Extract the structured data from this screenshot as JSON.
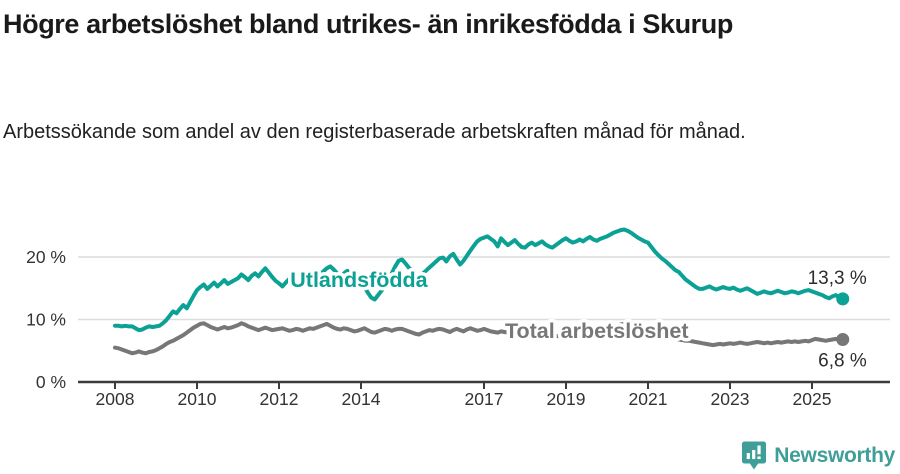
{
  "header": {
    "title": "Högre arbetslöshet bland utrikes- än inrikesfödda i Skurup",
    "subtitle": "Arbetssökande som andel av den registerbaserade arbetskraften månad för månad."
  },
  "chart_data": {
    "type": "line",
    "frequency": "monthly",
    "x_start": "2008-01",
    "x_end": "2025-10",
    "x_tick_years": [
      2008,
      2010,
      2012,
      2014,
      2017,
      2019,
      2021,
      2023,
      2025
    ],
    "y_ticks": [
      {
        "value": 0,
        "label": "0 %"
      },
      {
        "value": 10,
        "label": "10 %"
      },
      {
        "value": 20,
        "label": "20 %"
      }
    ],
    "ylim": [
      0,
      26
    ],
    "grid": "horizontal",
    "legend_position": "inline-labels",
    "grid_color": "#dcdcdc",
    "axis_color": "#3c3c3c",
    "tick_text_color": "#333333",
    "end_label_color": "#2d2d2d",
    "series": [
      {
        "name": "Utlandsfödda",
        "color": "#0ca195",
        "end_label": "13,3 %",
        "end_value": 13.3,
        "inline_label": {
          "x": 2013.95,
          "y": 15.2
        },
        "end_label_dy": -15,
        "values": [
          9.0,
          9.0,
          8.9,
          9.0,
          8.9,
          8.9,
          8.6,
          8.3,
          8.4,
          8.7,
          8.9,
          8.8,
          8.9,
          9.0,
          9.4,
          9.9,
          10.6,
          11.3,
          11.0,
          11.7,
          12.3,
          11.8,
          12.8,
          13.8,
          14.7,
          15.2,
          15.6,
          14.9,
          15.4,
          15.9,
          15.3,
          15.8,
          16.3,
          15.7,
          16.0,
          16.3,
          16.6,
          17.2,
          16.8,
          16.3,
          17.0,
          17.4,
          16.9,
          17.6,
          18.2,
          17.5,
          16.8,
          16.2,
          15.8,
          15.3,
          15.9,
          16.5,
          17.0,
          16.6,
          16.1,
          16.6,
          17.2,
          16.8,
          16.4,
          16.8,
          17.2,
          17.7,
          18.2,
          18.5,
          18.0,
          17.4,
          17.0,
          17.4,
          17.8,
          17.3,
          16.8,
          16.4,
          15.9,
          15.2,
          14.3,
          13.5,
          13.2,
          13.9,
          14.6,
          15.4,
          16.3,
          17.4,
          18.5,
          19.4,
          19.6,
          19.0,
          18.3,
          17.7,
          17.2,
          16.9,
          17.3,
          17.8,
          18.3,
          18.8,
          19.3,
          19.8,
          19.9,
          19.3,
          20.1,
          20.5,
          19.6,
          18.8,
          19.4,
          20.2,
          21.0,
          21.8,
          22.5,
          22.9,
          23.1,
          23.3,
          22.9,
          22.5,
          21.7,
          23.0,
          22.4,
          21.9,
          22.3,
          22.7,
          22.1,
          21.6,
          21.5,
          22.0,
          22.3,
          21.9,
          22.2,
          22.5,
          22.0,
          21.7,
          21.5,
          21.9,
          22.3,
          22.7,
          23.0,
          22.6,
          22.3,
          22.5,
          22.8,
          22.5,
          22.9,
          23.2,
          22.8,
          22.6,
          22.9,
          23.1,
          23.3,
          23.6,
          23.9,
          24.1,
          24.3,
          24.4,
          24.2,
          23.9,
          23.5,
          23.1,
          22.8,
          22.5,
          22.3,
          21.6,
          20.9,
          20.3,
          19.8,
          19.4,
          18.9,
          18.4,
          17.9,
          17.6,
          17.0,
          16.4,
          16.0,
          15.6,
          15.2,
          14.9,
          14.9,
          15.1,
          15.3,
          15.0,
          14.8,
          15.0,
          15.2,
          15.0,
          14.9,
          15.1,
          14.8,
          14.6,
          14.8,
          15.0,
          14.7,
          14.4,
          14.1,
          14.3,
          14.5,
          14.3,
          14.2,
          14.4,
          14.6,
          14.4,
          14.2,
          14.3,
          14.5,
          14.4,
          14.2,
          14.4,
          14.6,
          14.7,
          14.5,
          14.3,
          14.1,
          13.9,
          13.6,
          13.4,
          13.7,
          13.9,
          13.5,
          13.3
        ]
      },
      {
        "name": "Total arbetslöshet",
        "color": "#777777",
        "end_label": "6,8 %",
        "end_value": 6.8,
        "inline_label": {
          "x": 2019.75,
          "y": 7.05
        },
        "end_label_dy": 27,
        "values": [
          5.5,
          5.4,
          5.2,
          5.0,
          4.8,
          4.6,
          4.7,
          4.9,
          4.7,
          4.6,
          4.8,
          4.9,
          5.1,
          5.4,
          5.7,
          6.1,
          6.4,
          6.6,
          6.9,
          7.2,
          7.5,
          7.9,
          8.3,
          8.7,
          9.0,
          9.3,
          9.4,
          9.1,
          8.8,
          8.6,
          8.4,
          8.6,
          8.8,
          8.6,
          8.7,
          8.9,
          9.1,
          9.4,
          9.2,
          8.9,
          8.7,
          8.5,
          8.3,
          8.5,
          8.7,
          8.5,
          8.3,
          8.4,
          8.5,
          8.6,
          8.4,
          8.2,
          8.3,
          8.5,
          8.4,
          8.2,
          8.4,
          8.6,
          8.5,
          8.7,
          8.9,
          9.1,
          9.3,
          9.0,
          8.7,
          8.5,
          8.4,
          8.6,
          8.5,
          8.3,
          8.1,
          8.2,
          8.4,
          8.6,
          8.3,
          8.0,
          7.9,
          8.1,
          8.3,
          8.5,
          8.4,
          8.2,
          8.4,
          8.5,
          8.5,
          8.3,
          8.1,
          7.9,
          7.7,
          7.6,
          7.9,
          8.1,
          8.3,
          8.2,
          8.4,
          8.5,
          8.4,
          8.2,
          8.0,
          8.3,
          8.5,
          8.3,
          8.1,
          8.4,
          8.6,
          8.4,
          8.2,
          8.3,
          8.5,
          8.3,
          8.1,
          8.0,
          7.9,
          8.1,
          8.0,
          7.9,
          7.8,
          7.9,
          7.8,
          7.7,
          7.8,
          7.9,
          7.7,
          7.6,
          7.5,
          7.6,
          7.5,
          7.4,
          7.5,
          7.4,
          7.3,
          7.4,
          7.5,
          7.4,
          7.3,
          7.4,
          7.5,
          7.4,
          7.5,
          7.6,
          7.5,
          7.6,
          7.7,
          7.8,
          8.0,
          8.3,
          8.7,
          9.0,
          9.2,
          9.3,
          9.1,
          9.0,
          8.8,
          8.6,
          8.4,
          8.3,
          8.2,
          8.1,
          7.9,
          7.7,
          7.5,
          7.3,
          7.2,
          7.0,
          6.9,
          6.8,
          6.7,
          6.6,
          6.6,
          6.5,
          6.4,
          6.3,
          6.2,
          6.1,
          6.0,
          5.9,
          6.0,
          6.1,
          6.0,
          6.1,
          6.2,
          6.1,
          6.2,
          6.3,
          6.2,
          6.1,
          6.2,
          6.3,
          6.4,
          6.3,
          6.2,
          6.3,
          6.2,
          6.3,
          6.4,
          6.3,
          6.4,
          6.5,
          6.4,
          6.5,
          6.4,
          6.5,
          6.6,
          6.5,
          6.7,
          6.9,
          6.8,
          6.7,
          6.6,
          6.7,
          6.8,
          6.9,
          6.7,
          6.8
        ]
      }
    ]
  },
  "footer": {
    "brand": "Newsworthy",
    "brand_color": "#3f9e97"
  }
}
